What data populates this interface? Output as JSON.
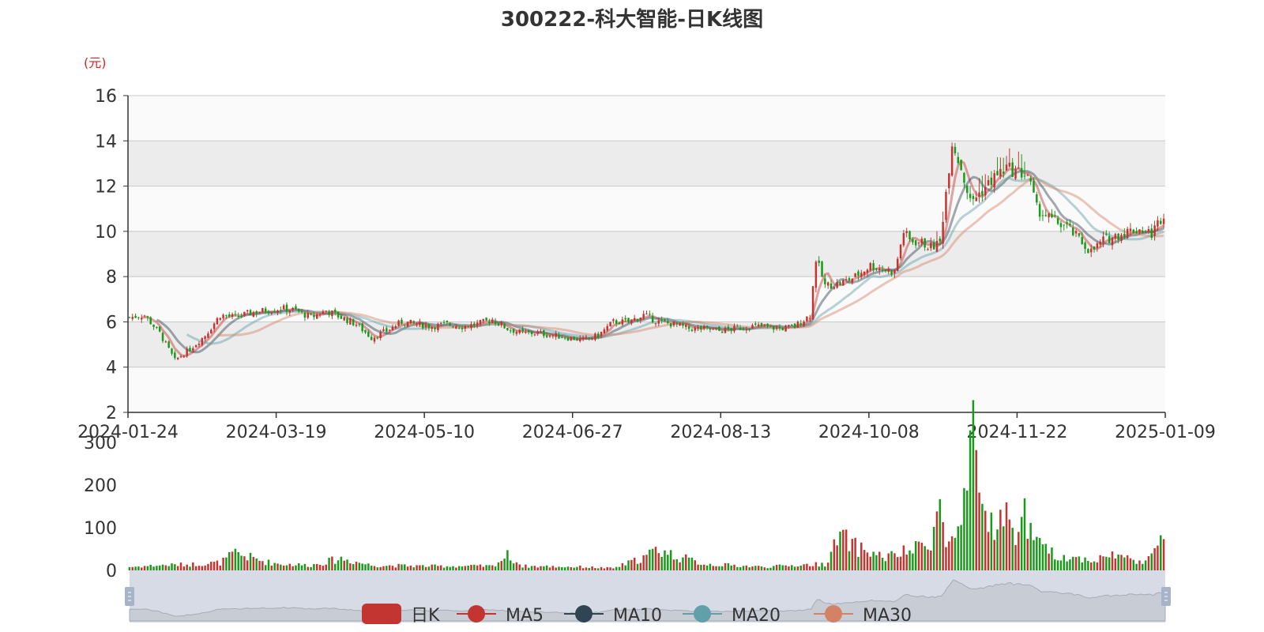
{
  "chart_data": {
    "type": "candlestick",
    "title": "300222-科大智能-日K线图",
    "unit_label": "(元)",
    "price_axis": {
      "ylim": [
        2,
        16
      ],
      "ticks": [
        "2",
        "4",
        "6",
        "8",
        "10",
        "12",
        "14",
        "16"
      ]
    },
    "volume_axis": {
      "ylim": [
        0,
        300
      ],
      "ticks": [
        "0",
        "100",
        "200",
        "300"
      ]
    },
    "date_ticks": [
      "2024-01-24",
      "2024-03-19",
      "2024-05-10",
      "2024-06-27",
      "2024-08-13",
      "2024-10-08",
      "2024-11-22",
      "2025-01-09"
    ],
    "legend": [
      "日K",
      "MA5",
      "MA10",
      "MA20",
      "MA30"
    ],
    "colors": {
      "up": "#c23531",
      "down": "#1a9a1a",
      "ma5": "#c23531",
      "ma10": "#2f4554",
      "ma20": "#61a0a8",
      "ma30": "#d48265"
    },
    "price_anchors": [
      [
        0,
        6.2
      ],
      [
        5,
        6.3
      ],
      [
        10,
        5.5
      ],
      [
        15,
        4.3
      ],
      [
        20,
        4.8
      ],
      [
        25,
        5.4
      ],
      [
        30,
        6.3
      ],
      [
        35,
        6.2
      ],
      [
        40,
        6.4
      ],
      [
        45,
        6.5
      ],
      [
        50,
        6.6
      ],
      [
        55,
        6.5
      ],
      [
        60,
        6.2
      ],
      [
        65,
        6.5
      ],
      [
        70,
        6.2
      ],
      [
        75,
        5.9
      ],
      [
        80,
        5.3
      ],
      [
        85,
        5.6
      ],
      [
        90,
        6.0
      ],
      [
        95,
        5.9
      ],
      [
        100,
        5.8
      ],
      [
        105,
        5.9
      ],
      [
        110,
        5.8
      ],
      [
        115,
        5.9
      ],
      [
        120,
        6.1
      ],
      [
        125,
        5.7
      ],
      [
        130,
        5.5
      ],
      [
        135,
        5.5
      ],
      [
        140,
        5.4
      ],
      [
        145,
        5.3
      ],
      [
        150,
        5.2
      ],
      [
        155,
        5.4
      ],
      [
        160,
        6.0
      ],
      [
        165,
        6.0
      ],
      [
        170,
        6.3
      ],
      [
        175,
        6.0
      ],
      [
        180,
        5.9
      ],
      [
        185,
        5.7
      ],
      [
        190,
        5.7
      ],
      [
        195,
        5.6
      ],
      [
        200,
        5.7
      ],
      [
        205,
        5.8
      ],
      [
        210,
        5.8
      ],
      [
        215,
        5.7
      ],
      [
        220,
        5.8
      ],
      [
        225,
        6.3
      ],
      [
        227,
        8.8
      ],
      [
        230,
        7.6
      ],
      [
        235,
        7.7
      ],
      [
        240,
        8.0
      ],
      [
        245,
        8.5
      ],
      [
        250,
        8.3
      ],
      [
        253,
        8.2
      ],
      [
        256,
        10.0
      ],
      [
        258,
        9.6
      ],
      [
        262,
        9.5
      ],
      [
        265,
        9.3
      ],
      [
        268,
        9.5
      ],
      [
        272,
        14.0
      ],
      [
        275,
        12.8
      ],
      [
        278,
        11.3
      ],
      [
        282,
        11.8
      ],
      [
        286,
        12.4
      ],
      [
        290,
        12.8
      ],
      [
        294,
        12.6
      ],
      [
        297,
        12.5
      ],
      [
        300,
        11.0
      ],
      [
        305,
        10.5
      ],
      [
        310,
        10.2
      ],
      [
        315,
        9.5
      ],
      [
        318,
        9.1
      ],
      [
        322,
        9.6
      ],
      [
        326,
        9.8
      ],
      [
        330,
        10.0
      ],
      [
        334,
        10.1
      ],
      [
        338,
        9.9
      ],
      [
        342,
        10.8
      ]
    ],
    "volume_anchors": [
      [
        0,
        8
      ],
      [
        10,
        12
      ],
      [
        20,
        14
      ],
      [
        30,
        18
      ],
      [
        35,
        40
      ],
      [
        45,
        20
      ],
      [
        50,
        15
      ],
      [
        60,
        12
      ],
      [
        70,
        28
      ],
      [
        80,
        12
      ],
      [
        100,
        10
      ],
      [
        120,
        10
      ],
      [
        125,
        35
      ],
      [
        130,
        10
      ],
      [
        150,
        8
      ],
      [
        160,
        5
      ],
      [
        170,
        30
      ],
      [
        175,
        50
      ],
      [
        180,
        35
      ],
      [
        190,
        15
      ],
      [
        210,
        8
      ],
      [
        220,
        12
      ],
      [
        230,
        15
      ],
      [
        235,
        80
      ],
      [
        240,
        55
      ],
      [
        250,
        30
      ],
      [
        260,
        50
      ],
      [
        265,
        75
      ],
      [
        268,
        150
      ],
      [
        270,
        60
      ],
      [
        275,
        90
      ],
      [
        279,
        290
      ],
      [
        282,
        150
      ],
      [
        285,
        110
      ],
      [
        290,
        120
      ],
      [
        293,
        90
      ],
      [
        296,
        130
      ],
      [
        300,
        60
      ],
      [
        305,
        40
      ],
      [
        310,
        30
      ],
      [
        320,
        25
      ],
      [
        325,
        38
      ],
      [
        330,
        28
      ],
      [
        335,
        22
      ],
      [
        340,
        48
      ],
      [
        342,
        75
      ]
    ],
    "n_days": 343,
    "seed": 7
  }
}
